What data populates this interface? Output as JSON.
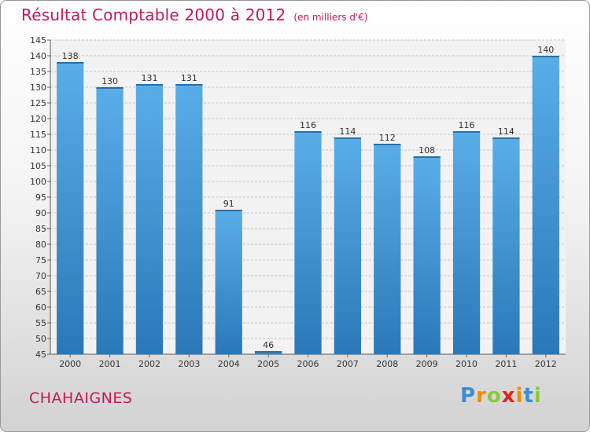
{
  "title": "Résultat Comptable 2000 à 2012",
  "subtitle": "(en milliers d'€)",
  "commune": "CHAHAIGNES",
  "logo": {
    "letters": [
      "P",
      "r",
      "o",
      "x",
      "i",
      "t",
      "i"
    ],
    "colors": [
      "#3a8ed0",
      "#f28c00",
      "#8cc63f",
      "#e2231a",
      "#f28c00",
      "#3a8ed0",
      "#8cc63f"
    ]
  },
  "colors": {
    "bar": "#4aa0e0",
    "title": "#c2185b"
  },
  "chart_data": {
    "type": "bar",
    "categories": [
      "2000",
      "2001",
      "2002",
      "2003",
      "2004",
      "2005",
      "2006",
      "2007",
      "2008",
      "2009",
      "2010",
      "2011",
      "2012"
    ],
    "values": [
      138,
      130,
      131,
      131,
      91,
      46,
      116,
      114,
      112,
      108,
      116,
      114,
      140
    ],
    "ylim": [
      45,
      145
    ],
    "ytick_step": 5,
    "grid": true,
    "title": "Résultat Comptable 2000 à 2012",
    "xlabel": "",
    "ylabel": ""
  }
}
